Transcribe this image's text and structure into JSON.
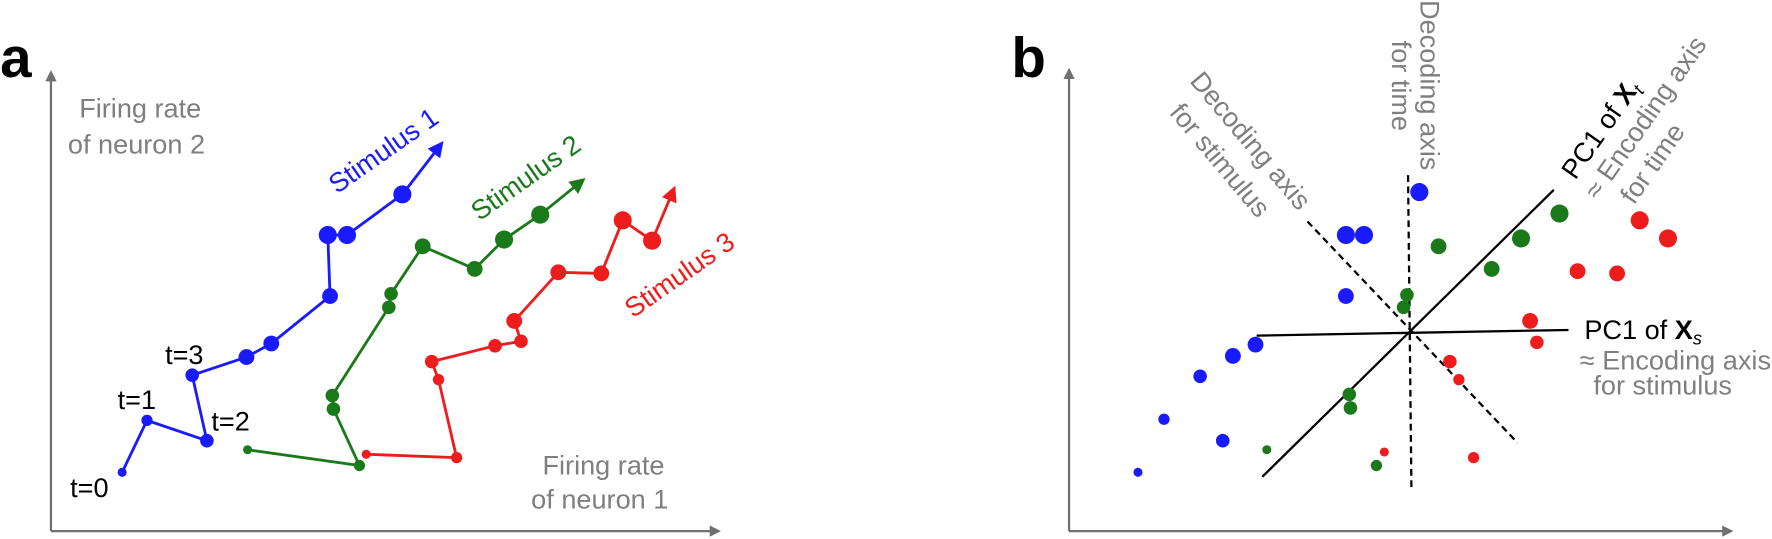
{
  "panel_a": {
    "label": "a",
    "y_axis_label": [
      "Firing rate",
      "of neuron 2"
    ],
    "x_axis_label": [
      "Firing rate",
      "of neuron 1"
    ],
    "stimuli": [
      "Stimulus 1",
      "Stimulus 2",
      "Stimulus 3"
    ],
    "time_labels": [
      "t=0",
      "t=1",
      "t=2",
      "t=3"
    ]
  },
  "panel_b": {
    "label": "b",
    "decoding_time": [
      "Decoding axis",
      "for time"
    ],
    "decoding_stimulus": [
      "Decoding axis",
      "for stimulus"
    ],
    "pc1_time": {
      "prefix": "PC1 of ",
      "symbol": "X",
      "subscript": "t"
    },
    "encoding_time": [
      "≈ Encoding axis",
      "for time"
    ],
    "pc1_stimulus": {
      "prefix": "PC1 of ",
      "symbol": "X",
      "subscript": "s"
    },
    "encoding_stimulus": [
      "≈ Encoding axis",
      "for stimulus"
    ]
  }
}
